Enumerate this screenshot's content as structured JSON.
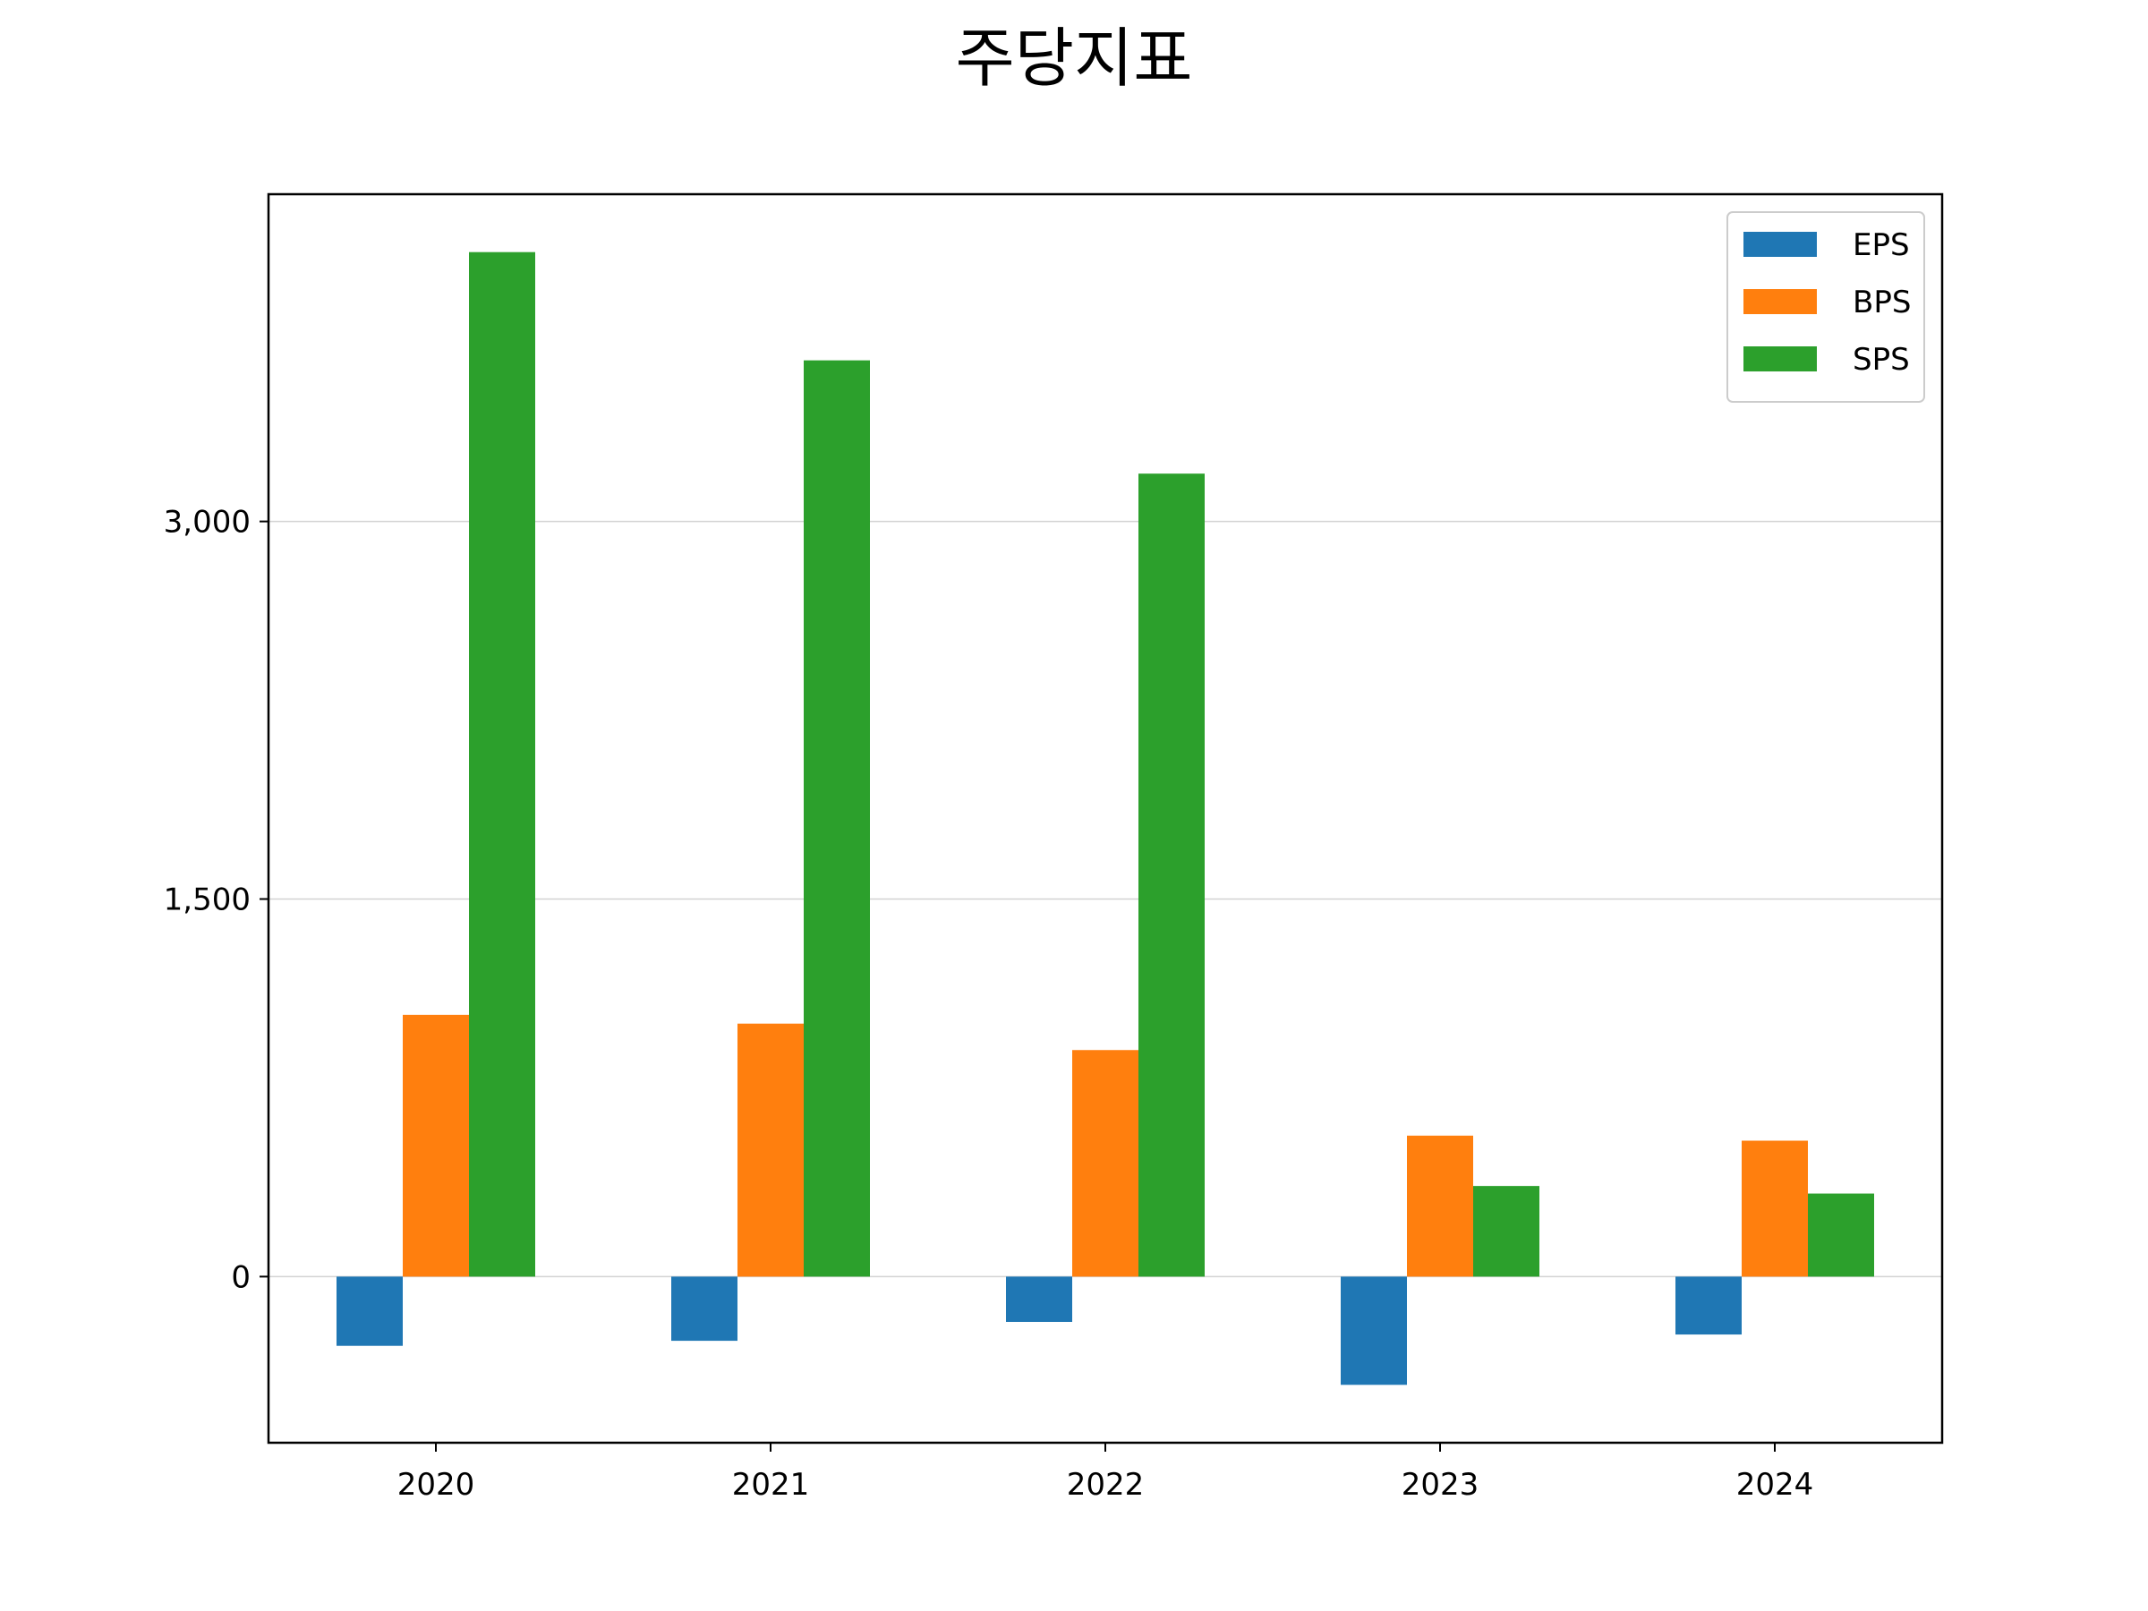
{
  "chart_data": {
    "type": "bar",
    "title": "주당지표",
    "xlabel": "",
    "ylabel": "",
    "categories": [
      "2020",
      "2021",
      "2022",
      "2023",
      "2024"
    ],
    "series": [
      {
        "name": "EPS",
        "color": "#1f77b4",
        "values": [
          -275,
          -255,
          -180,
          -430,
          -230
        ]
      },
      {
        "name": "BPS",
        "color": "#ff7f0e",
        "values": [
          1040,
          1005,
          900,
          560,
          540
        ]
      },
      {
        "name": "SPS",
        "color": "#2ca02c",
        "values": [
          4070,
          3640,
          3190,
          360,
          330
        ]
      }
    ],
    "ylim": [
      -660,
      4300
    ],
    "yticks": [
      0,
      1500,
      3000
    ],
    "ytick_labels": [
      "0",
      "1,500",
      "3,000"
    ],
    "grid": "y",
    "legend": "top-right"
  }
}
